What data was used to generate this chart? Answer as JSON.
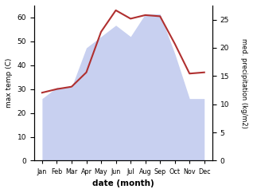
{
  "months": [
    "Jan",
    "Feb",
    "Mar",
    "Apr",
    "May",
    "Jun",
    "Jul",
    "Aug",
    "Sep",
    "Oct",
    "Nov",
    "Dec"
  ],
  "temp": [
    28.5,
    30.0,
    31.0,
    37.0,
    54.0,
    63.0,
    59.5,
    61.0,
    60.5,
    49.0,
    36.5,
    37.0
  ],
  "precip": [
    11,
    13,
    13,
    20,
    22,
    24,
    22,
    26,
    26,
    19,
    11,
    11
  ],
  "temp_color": "#b03030",
  "precip_fill_color": "#c8d0f0",
  "left_ylabel": "max temp (C)",
  "right_ylabel": "med. precipitation (kg/m2)",
  "xlabel": "date (month)",
  "ylim_left": [
    0,
    65
  ],
  "ylim_right": [
    0,
    27.5
  ],
  "yticks_left": [
    0,
    10,
    20,
    30,
    40,
    50,
    60
  ],
  "yticks_right": [
    0,
    5,
    10,
    15,
    20,
    25
  ],
  "background": "#ffffff"
}
